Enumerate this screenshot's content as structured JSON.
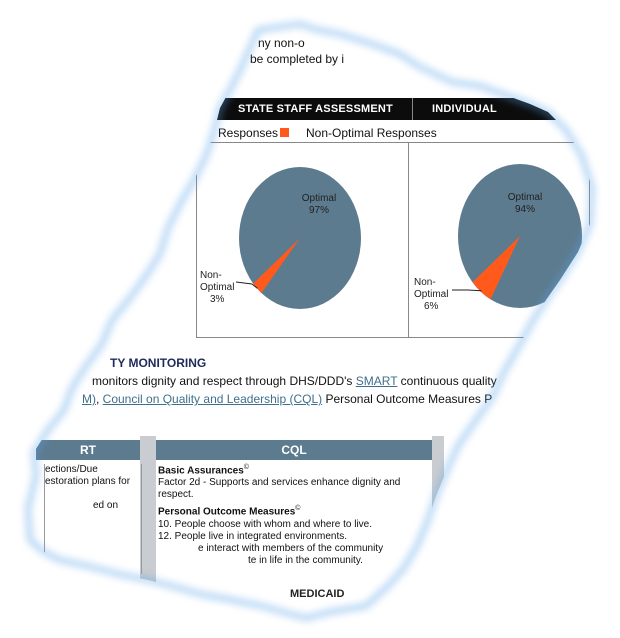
{
  "top_lines": {
    "line1": "ny non-o",
    "line2": "be completed by i"
  },
  "header_bar": {
    "left": "STATE STAFF ASSESSMENT",
    "right": "INDIVIDUAL"
  },
  "legend": {
    "optimal_label": "Responses",
    "nonoptimal_label": "Non-Optimal Responses",
    "color_nonoptimal": "#ff5a1c",
    "color_optimal": "#5c7b8e"
  },
  "chart_data": [
    {
      "type": "pie",
      "slices": [
        {
          "label": "Optimal",
          "value": 97,
          "text": "97%"
        },
        {
          "label": "Non-Optimal",
          "value": 3,
          "text": "3%"
        }
      ]
    },
    {
      "type": "pie",
      "slices": [
        {
          "label": "Optimal",
          "value": 94,
          "text": "94%"
        },
        {
          "label": "Non-Optimal",
          "value": 6,
          "text": "6%"
        }
      ]
    }
  ],
  "pie_labels": {
    "optimal_word": "Optimal",
    "nonopt_line1": "Non-",
    "nonopt_line2": "Optimal"
  },
  "monitoring": {
    "title": "TY MONITORING",
    "line1_a": "monitors dignity and respect through DHS/DDD's ",
    "line1_link": "SMART",
    "line1_b": " continuous quality",
    "line2_prefix": "M)",
    "line2_sep": ", ",
    "line2_link": "Council on Quality and Leadership (CQL)",
    "line2_b": " Personal Outcome Measures P"
  },
  "table": {
    "left_head": "RT",
    "right_head": "CQL",
    "left_lines": [
      "ections/Due",
      "estoration plans for",
      "ed on"
    ],
    "basic_title": "Basic Assurances",
    "basic_sup": "©",
    "basic_line1": "Factor 2d - Supports and services enhance dignity and",
    "basic_line2": "respect.",
    "pom_title": "Personal Outcome Measures",
    "pom_sup": "©",
    "pom_items": [
      "10. People choose with whom and where to live.",
      "12. People live in integrated environments.",
      "e interact with members of the community",
      "te in life in the community."
    ]
  },
  "footer": {
    "text": "MEDICAID"
  }
}
